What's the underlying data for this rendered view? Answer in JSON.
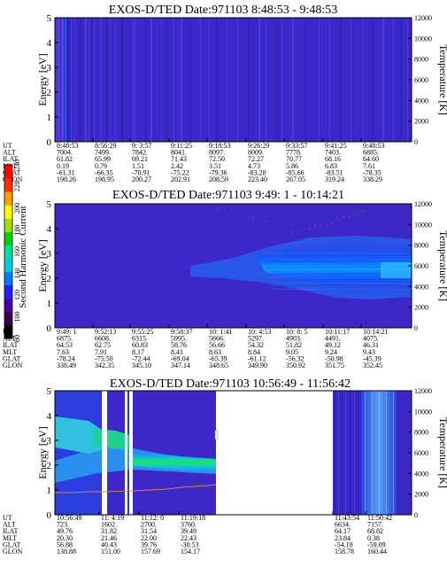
{
  "panels": [
    {
      "title": "EXOS-D/TED    Date:971103   8:48:53 - 9:48:53",
      "left_ylabel": "Energy [eV]",
      "right_ylabel": "Temperature [K]",
      "yticks_left": [
        "0",
        "1",
        "2",
        "3",
        "4",
        "5"
      ],
      "yticks_right": [
        "0",
        "2000",
        "4000",
        "6000",
        "8000",
        "10000",
        "12000"
      ],
      "table_rows": [
        "UT",
        "ALT",
        "ILAT",
        "MLT",
        "GLAT",
        "GLON"
      ],
      "table_cols": [
        [
          "8:48:53",
          "7004.",
          "61.82",
          "0.19",
          "-61.31",
          "198.26"
        ],
        [
          "8:56:29",
          "7499.",
          "65.99",
          "0.79",
          "-66.35",
          "198.95"
        ],
        [
          "9: 3:57",
          "7842.",
          "69.21",
          "1.51",
          "-70.91",
          "200.27"
        ],
        [
          "9:11:25",
          "8041.",
          "71.43",
          "2.42",
          "-75.22",
          "202.91"
        ],
        [
          "9:18:53",
          "8097.",
          "72.50",
          "3.51",
          "-79.36",
          "208.59"
        ],
        [
          "9:26:29",
          "8009.",
          "72.27",
          "4.73",
          "-83.28",
          "223.40"
        ],
        [
          "9:33:57",
          "7778.",
          "70.77",
          "5.86",
          "-85.66",
          "267.05"
        ],
        [
          "9:41:25",
          "7403.",
          "68.16",
          "6.83",
          "-83.51",
          "319.24"
        ],
        [
          "9:48:53",
          "6885.",
          "64.60",
          "7.61",
          "-78.35",
          "338.29"
        ]
      ]
    },
    {
      "title": "EXOS-D/TED   Date:971103   9:49: 1 - 10:14:21",
      "left_ylabel": "Energy [eV]",
      "right_ylabel": "Temperature [K]",
      "yticks_left": [
        "0",
        "1",
        "2",
        "3",
        "4",
        "5"
      ],
      "yticks_right": [
        "0",
        "2000",
        "4000",
        "6000",
        "8000",
        "10000",
        "12000"
      ],
      "table_rows": [
        "UT",
        "ALT",
        "ILAT",
        "MLT",
        "GLAT",
        "GLON"
      ],
      "table_cols": [
        [
          "9:49: 1",
          "6875.",
          "64.53",
          "7.63",
          "-78.24",
          "338.49"
        ],
        [
          "9:52:13",
          "6608.",
          "62.75",
          "7.91",
          "-75.50",
          "342.35"
        ],
        [
          "9:55:25",
          "6315.",
          "60.83",
          "8.17",
          "-72.44",
          "345.10"
        ],
        [
          "9:58:37",
          "5995.",
          "58.76",
          "8.41",
          "-69.04",
          "347.14"
        ],
        [
          "10: 1:41",
          "5666.",
          "56.66",
          "8.63",
          "-65.39",
          "348.65"
        ],
        [
          "10: 4:53",
          "5297.",
          "54.32",
          "8.84",
          "-61.12",
          "349.90"
        ],
        [
          "10: 8: 5",
          "4903.",
          "51.82",
          "9.05",
          "-56.32",
          "350.92"
        ],
        [
          "10:11:17",
          "4491.",
          "49.12",
          "9.24",
          "-50.98",
          "351.75"
        ],
        [
          "10:14:21",
          "4075.",
          "46.31",
          "9.43",
          "-45.39",
          "352.45"
        ]
      ]
    },
    {
      "title": "EXOS-D/TED   Date:971103   10:56:49 - 11:56:42",
      "left_ylabel": "Energy [eV]",
      "right_ylabel": "Temperature [K]",
      "yticks_left": [
        "0",
        "1",
        "2",
        "3",
        "4",
        "5"
      ],
      "yticks_right": [
        "0",
        "2000",
        "4000",
        "6000",
        "8000",
        "10000",
        "12000"
      ],
      "table_rows": [
        "UT",
        "ALT",
        "ILAT",
        "MLT",
        "GLAT",
        "GLON"
      ],
      "table_cols": [
        [
          "10:56:49",
          "723.",
          "49.76",
          "20.30",
          "56.88",
          "138.88"
        ],
        [
          "11: 4:19",
          "1602.",
          "31.82",
          "21.46",
          "40.43",
          "151.00"
        ],
        [
          "11:12: 0",
          "2700.",
          "31.54",
          "22.00",
          "39.76",
          "157.69"
        ],
        [
          "11:19:18",
          "3760.",
          "39.49",
          "22.43",
          "-30.53",
          "154.17"
        ],
        [
          "11:43:54",
          "6634.",
          "64.17",
          "23.84",
          "-54.18",
          "158.78"
        ],
        [
          "11:50:42",
          "7157.",
          "68.82",
          "0.38",
          "-59.09",
          "160.44"
        ]
      ]
    }
  ],
  "colorbar": {
    "label": "Second Harmonic Current",
    "ticks": [
      "80",
      "100",
      "120",
      "140",
      "160",
      "180",
      "200",
      "220",
      "240"
    ],
    "colors": [
      "#000000",
      "#3a0050",
      "#4a00a0",
      "#2020ff",
      "#0078ff",
      "#00c8e0",
      "#00e0a0",
      "#00d000",
      "#a0e000",
      "#ffff00",
      "#ffa000",
      "#ff3000",
      "#ff0000"
    ]
  },
  "chart_data": [
    {
      "type": "heatmap",
      "title": "EXOS-D/TED    Date:971103   8:48:53 - 9:48:53",
      "ylabel": "Energy [eV]",
      "ylabel_right": "Temperature [K]",
      "ylim": [
        0,
        5
      ],
      "ylim_right": [
        0,
        12000
      ],
      "x_ticks": [
        "8:48:53",
        "8:56:29",
        "9: 3:57",
        "9:11:25",
        "9:18:53",
        "9:26:29",
        "9:33:57",
        "9:41:25",
        "9:48:53"
      ],
      "background_level": 120,
      "features": [
        {
          "energy_range": [
            0,
            5
          ],
          "level": 130,
          "description": "thin vertical streaks across full energy range"
        }
      ]
    },
    {
      "type": "heatmap",
      "title": "EXOS-D/TED   Date:971103   9:49: 1 - 10:14:21",
      "ylabel": "Energy [eV]",
      "ylabel_right": "Temperature [K]",
      "ylim": [
        0,
        5
      ],
      "ylim_right": [
        0,
        12000
      ],
      "x_ticks": [
        "9:49: 1",
        "9:52:13",
        "9:55:25",
        "9:58:37",
        "10: 1:41",
        "10: 4:53",
        "10: 8: 5",
        "10:11:17",
        "10:14:21"
      ],
      "background_level": 120,
      "features": [
        {
          "time_range": [
            "9:58:37",
            "10:14:21"
          ],
          "energy_range": [
            1.3,
            3.2
          ],
          "level": 145
        },
        {
          "time_range": [
            "10: 4:53",
            "10:14:21"
          ],
          "energy_range": [
            1.8,
            2.8
          ],
          "level": 155
        }
      ],
      "temperature_points": [
        {
          "x": "10: 4:53",
          "y": 8500
        },
        {
          "x": "10: 8: 5",
          "y": 9500
        },
        {
          "x": "10:11:17",
          "y": 10000
        }
      ]
    },
    {
      "type": "heatmap",
      "title": "EXOS-D/TED   Date:971103   10:56:49 - 11:56:42",
      "ylabel": "Energy [eV]",
      "ylabel_right": "Temperature [K]",
      "ylim": [
        0,
        5
      ],
      "ylim_right": [
        0,
        12000
      ],
      "x_ticks": [
        "10:56:49",
        "11: 4:19",
        "11:12: 0",
        "11:19:18",
        "11:43:54",
        "11:50:42"
      ],
      "background_level": 120,
      "features": [
        {
          "time_range": [
            "10:56:49",
            "11:19:18"
          ],
          "energy_range": [
            1.8,
            2.8
          ],
          "level": 170
        },
        {
          "time_range": [
            "10:56:49",
            "11: 4:19"
          ],
          "energy_range": [
            2.6,
            3.4
          ],
          "level": 165
        },
        {
          "time_range": [
            "11:43:54",
            "11:50:42"
          ],
          "energy_range": [
            0,
            5
          ],
          "level": 135
        }
      ],
      "temperature_points": [
        {
          "x": "10:56:49",
          "y": 1500
        },
        {
          "x": "11: 4:19",
          "y": 1600
        },
        {
          "x": "11:12: 0",
          "y": 2000
        },
        {
          "x": "11:19:18",
          "y": 2600
        }
      ]
    }
  ]
}
